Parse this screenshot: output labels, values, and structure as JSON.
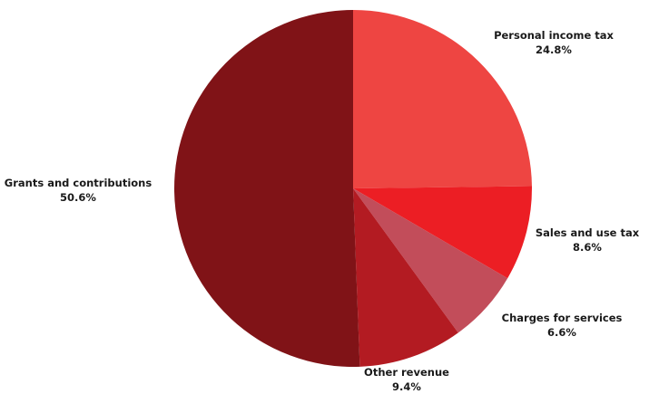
{
  "chart_data": {
    "type": "pie",
    "title": "",
    "start_angle_deg": 0,
    "direction": "clockwise",
    "legend": "none",
    "slices": [
      {
        "label": "Personal income tax",
        "value": 24.8,
        "display": "24.8%",
        "color": "#ee4542"
      },
      {
        "label": "Sales and use tax",
        "value": 8.6,
        "display": "8.6%",
        "color": "#ec1e24"
      },
      {
        "label": "Charges for services",
        "value": 6.6,
        "display": "6.6%",
        "color": "#c24d5a"
      },
      {
        "label": "Other revenue",
        "value": 9.4,
        "display": "9.4%",
        "color": "#b31b22"
      },
      {
        "label": "Grants and contributions",
        "value": 50.6,
        "display": "50.6%",
        "color": "#801317"
      }
    ]
  }
}
